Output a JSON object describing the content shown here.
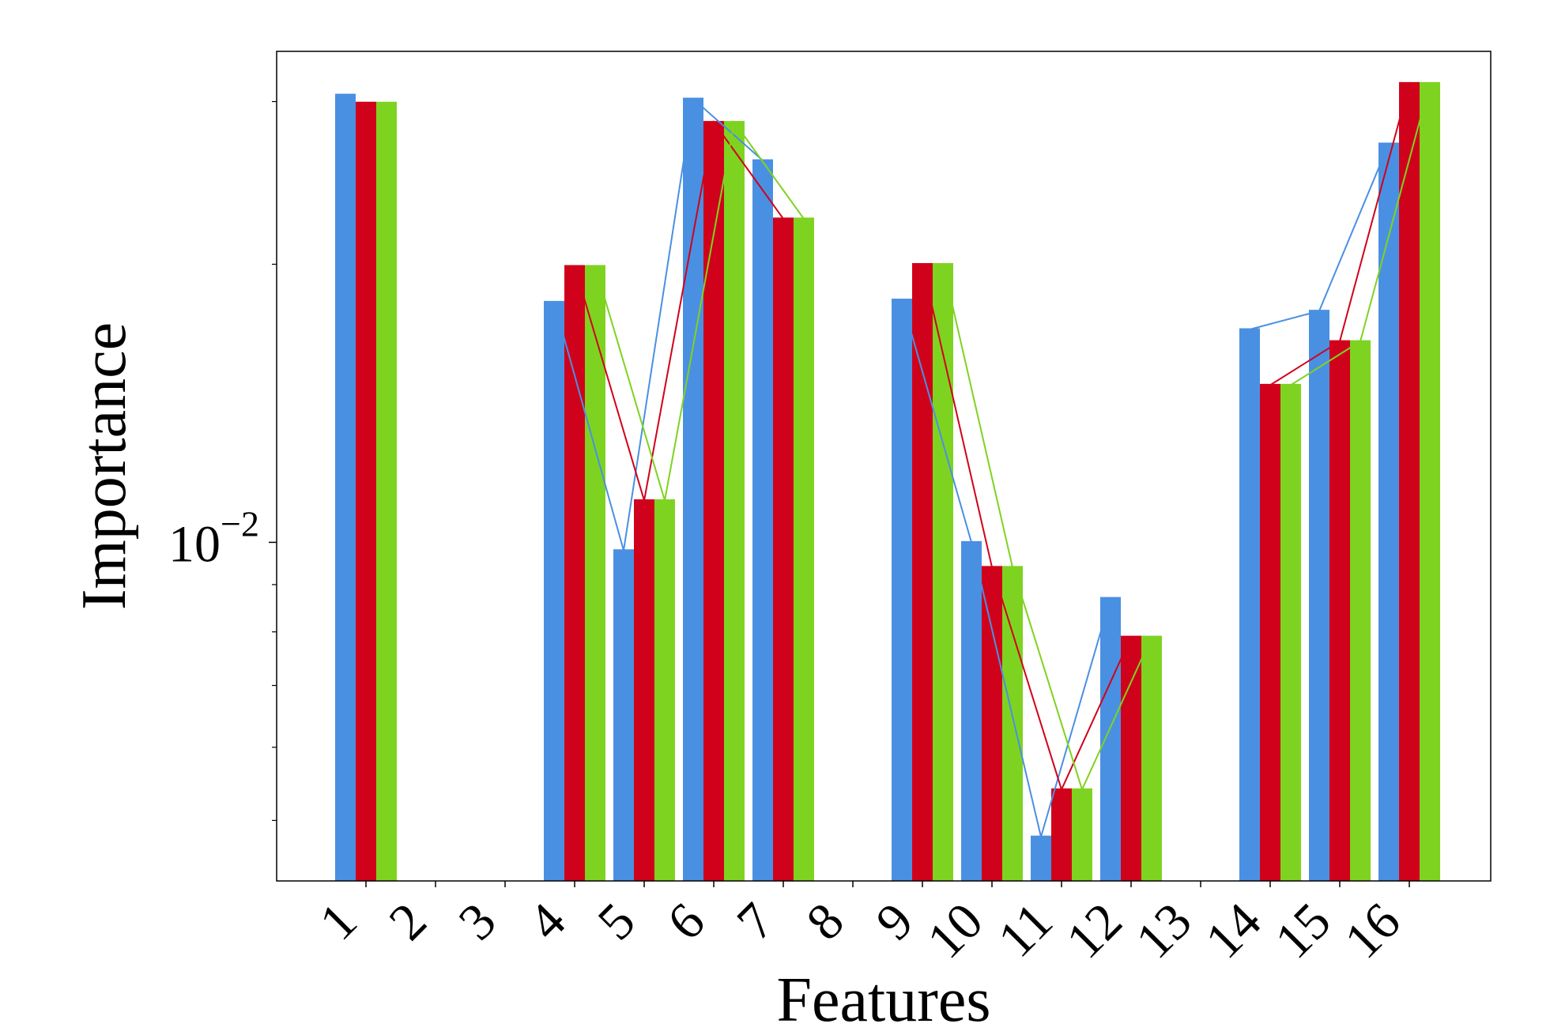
{
  "chart_data": {
    "type": "bar",
    "title": "",
    "xlabel": "Features",
    "ylabel": "Importance",
    "yscale": "log",
    "ylim": [
      0.0043,
      0.034
    ],
    "y_ticks": [
      {
        "value": 0.01,
        "base": "10",
        "exp": "−2"
      }
    ],
    "categories": [
      "1",
      "2",
      "3",
      "4",
      "5",
      "6",
      "7",
      "8",
      "9",
      "10",
      "11",
      "12",
      "13",
      "14",
      "15",
      "16"
    ],
    "series": [
      {
        "color": "#4a90e2",
        "values": [
          0.0305,
          null,
          null,
          0.0182,
          0.0098,
          0.0302,
          0.0259,
          null,
          0.0183,
          0.01,
          0.0048,
          0.0087,
          null,
          0.017,
          0.0178,
          0.027
        ]
      },
      {
        "color": "#d0021b",
        "values": [
          0.0299,
          null,
          null,
          0.0199,
          0.0111,
          0.0285,
          0.0224,
          null,
          0.02,
          0.0094,
          0.0054,
          0.0079,
          null,
          0.0148,
          0.0165,
          0.0314
        ]
      },
      {
        "color": "#7ed321",
        "values": [
          0.0299,
          null,
          null,
          0.0199,
          0.0111,
          0.0285,
          0.0224,
          null,
          0.02,
          0.0094,
          0.0054,
          0.0079,
          null,
          0.0148,
          0.0165,
          0.0314
        ]
      }
    ],
    "connector_groups": [
      [
        3,
        4,
        5,
        6
      ],
      [
        8,
        9,
        10,
        11
      ],
      [
        13,
        14,
        15
      ]
    ]
  }
}
